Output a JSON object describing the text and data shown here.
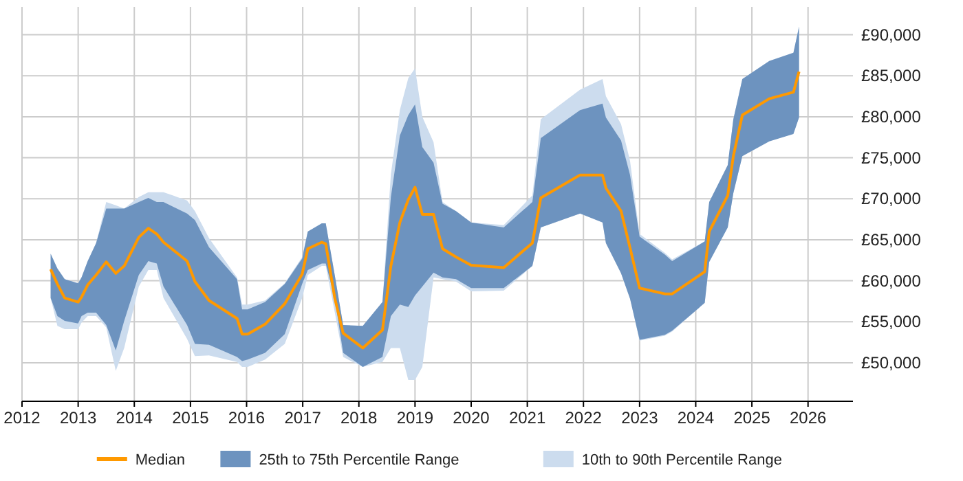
{
  "chart_data": {
    "type": "line",
    "x": [
      2012.51,
      2012.63,
      2012.76,
      2013.0,
      2013.06,
      2013.17,
      2013.32,
      2013.5,
      2013.67,
      2013.82,
      2014.08,
      2014.25,
      2014.4,
      2014.52,
      2014.94,
      2015.08,
      2015.33,
      2015.83,
      2015.92,
      2016.02,
      2016.33,
      2016.68,
      2016.99,
      2017.09,
      2017.34,
      2017.41,
      2017.57,
      2017.72,
      2018.07,
      2018.42,
      2018.57,
      2018.73,
      2018.88,
      2019.0,
      2019.13,
      2019.33,
      2019.49,
      2019.73,
      2020.0,
      2020.58,
      2021.09,
      2021.24,
      2021.94,
      2022.34,
      2022.4,
      2022.67,
      2022.83,
      2023.0,
      2023.45,
      2023.58,
      2024.16,
      2024.24,
      2024.57,
      2024.67,
      2024.83,
      2025.31,
      2025.74,
      2025.84
    ],
    "series": [
      {
        "name": "10th to 90th Percentile Range",
        "color": "#ccdcee",
        "values": [
          null,
          null,
          null,
          null,
          null,
          null,
          null,
          null,
          null,
          null,
          null,
          null,
          null,
          null,
          null,
          null,
          null,
          null,
          null,
          null,
          null,
          null,
          null,
          null,
          null,
          null,
          null,
          null,
          null,
          null,
          null,
          null,
          null,
          null,
          null,
          null,
          null,
          null,
          null,
          null,
          null,
          null,
          null,
          null,
          null,
          null,
          null,
          null,
          null,
          null,
          null,
          null,
          null,
          null,
          null,
          null,
          null,
          null
        ],
        "lower": [
          57900,
          54500,
          54100,
          54100,
          54900,
          55700,
          55700,
          54300,
          49000,
          51800,
          59300,
          61300,
          61300,
          57900,
          52900,
          50800,
          50900,
          50100,
          49500,
          49500,
          50400,
          52300,
          57900,
          60700,
          61800,
          61800,
          56200,
          50700,
          49500,
          50100,
          51800,
          51800,
          47900,
          47900,
          49500,
          60400,
          60200,
          59900,
          58700,
          58800,
          61800,
          66500,
          68200,
          67100,
          64600,
          60900,
          57800,
          52700,
          53300,
          53800,
          57300,
          62300,
          66500,
          70700,
          75200,
          77100,
          78000,
          79900
        ],
        "upper": [
          63300,
          61500,
          60200,
          59700,
          60400,
          62400,
          64600,
          69600,
          69200,
          68800,
          70200,
          70800,
          70800,
          70800,
          69800,
          68500,
          65200,
          60400,
          57100,
          57100,
          57600,
          59700,
          62900,
          66000,
          67000,
          67000,
          60700,
          54600,
          54500,
          57400,
          73000,
          80800,
          84700,
          85900,
          80000,
          76900,
          69600,
          68500,
          67100,
          66800,
          70400,
          79700,
          83300,
          84600,
          82500,
          79100,
          74600,
          65700,
          63400,
          62600,
          64800,
          69600,
          74100,
          79700,
          84600,
          86800,
          87800,
          91000
        ]
      },
      {
        "name": "25th to 75th Percentile Range",
        "color": "#6d93bf",
        "values": [
          null,
          null,
          null,
          null,
          null,
          null,
          null,
          null,
          null,
          null,
          null,
          null,
          null,
          null,
          null,
          null,
          null,
          null,
          null,
          null,
          null,
          null,
          null,
          null,
          null,
          null,
          null,
          null,
          null,
          null,
          null,
          null,
          null,
          null,
          null,
          null,
          null,
          null,
          null,
          null,
          null,
          null,
          null,
          null,
          null,
          null,
          null,
          null,
          null,
          null,
          null,
          null,
          null,
          null,
          null,
          null,
          null,
          null
        ],
        "lower": [
          57900,
          55700,
          55100,
          54800,
          55700,
          56100,
          56100,
          54600,
          51500,
          55100,
          60700,
          62400,
          62100,
          59300,
          54600,
          52300,
          52200,
          50700,
          50200,
          50400,
          51200,
          53500,
          59600,
          61300,
          62100,
          62100,
          57900,
          51200,
          49500,
          50700,
          55700,
          57100,
          56800,
          58200,
          59300,
          61000,
          60400,
          60200,
          59100,
          59100,
          61800,
          66500,
          68200,
          67100,
          64600,
          60900,
          57800,
          52800,
          53400,
          53900,
          57300,
          62300,
          66500,
          70700,
          75200,
          77000,
          77900,
          79900
        ],
        "upper": [
          63300,
          61500,
          60200,
          59700,
          60400,
          62400,
          64600,
          68800,
          68800,
          68800,
          69600,
          70100,
          69600,
          69600,
          68200,
          67400,
          64100,
          60200,
          56500,
          56500,
          57400,
          59600,
          62700,
          66000,
          67000,
          67000,
          60700,
          54600,
          54500,
          57400,
          70200,
          77700,
          80200,
          81500,
          76300,
          74400,
          69400,
          68500,
          67100,
          66500,
          69600,
          77400,
          80800,
          81600,
          79900,
          77100,
          72900,
          65400,
          63200,
          62400,
          64800,
          69600,
          74100,
          79700,
          84600,
          86800,
          87800,
          91000
        ]
      },
      {
        "name": "Median",
        "color": "#ff9900",
        "values": [
          61400,
          59600,
          57900,
          57400,
          58000,
          59500,
          60700,
          62300,
          60900,
          61800,
          65300,
          66400,
          65700,
          64700,
          62400,
          59900,
          57600,
          55400,
          53500,
          53500,
          54700,
          57200,
          60800,
          63900,
          64700,
          64500,
          57900,
          53600,
          51800,
          54000,
          61800,
          67100,
          69900,
          71400,
          68100,
          68100,
          63900,
          62900,
          61900,
          61600,
          64600,
          70100,
          72900,
          72900,
          71300,
          68500,
          64000,
          59100,
          58400,
          58400,
          61100,
          66000,
          70400,
          75200,
          80200,
          82200,
          83000,
          85500
        ]
      }
    ],
    "xlim": [
      2012,
      2026.8
    ],
    "xticks": [
      2012,
      2013,
      2014,
      2015,
      2016,
      2017,
      2018,
      2019,
      2020,
      2021,
      2022,
      2023,
      2024,
      2025,
      2026
    ],
    "ylim": [
      45300,
      93400
    ],
    "yticks": [
      {
        "value": 50000,
        "label": "£50,000"
      },
      {
        "value": 55000,
        "label": "£55,000"
      },
      {
        "value": 60000,
        "label": "£60,000"
      },
      {
        "value": 65000,
        "label": "£65,000"
      },
      {
        "value": 70000,
        "label": "£70,000"
      },
      {
        "value": 75000,
        "label": "£75,000"
      },
      {
        "value": 80000,
        "label": "£80,000"
      },
      {
        "value": 85000,
        "label": "£85,000"
      },
      {
        "value": 90000,
        "label": "£90,000"
      }
    ],
    "grid": true,
    "legend": "bottom",
    "marker": "none"
  }
}
